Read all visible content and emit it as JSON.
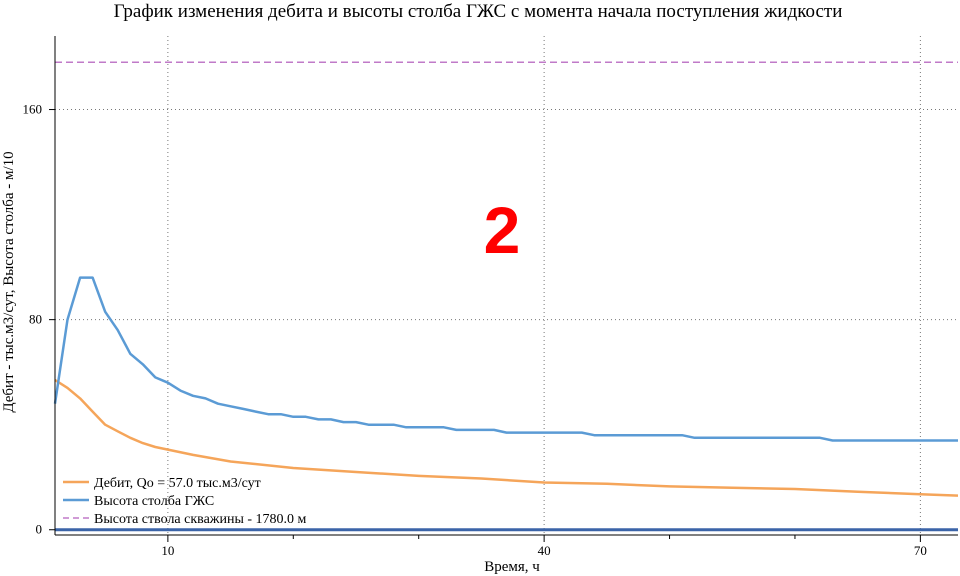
{
  "chart_data": {
    "type": "line",
    "title": "График изменения дебита и высоты столба ГЖС с момента начала поступления жидкости",
    "xlabel": "Время, ч",
    "ylabel": "Дебит - тыс.м3/сут, Высота столба - м/10",
    "xlim": [
      1,
      73
    ],
    "ylim": [
      -2,
      188
    ],
    "xticks_major": [
      10,
      40,
      70
    ],
    "xticks_minor": [
      20,
      30,
      50,
      60
    ],
    "yticks": [
      0,
      80,
      160
    ],
    "grid": true,
    "legend_position": "bottom-left",
    "annotation": "2",
    "series": [
      {
        "name": "Дебит, Qo =  57.0 тыс.м3/сут",
        "color": "#f5a55a",
        "style": "solid",
        "x": [
          1,
          2,
          3,
          4,
          5,
          6,
          7,
          8,
          9,
          10,
          12,
          15,
          20,
          25,
          30,
          35,
          40,
          45,
          50,
          55,
          60,
          65,
          70,
          73
        ],
        "y": [
          57.0,
          54,
          50,
          45,
          40,
          37.5,
          35,
          33,
          31.5,
          30.5,
          28.5,
          26,
          23.5,
          22,
          20.5,
          19.5,
          18,
          17.5,
          16.5,
          16,
          15.5,
          14.5,
          13.5,
          13
        ]
      },
      {
        "name": "Высота столба ГЖС",
        "color": "#5b9bd5",
        "style": "solid",
        "x": [
          1,
          2,
          3,
          4,
          5,
          6,
          7,
          8,
          9,
          10,
          11,
          12,
          13,
          14,
          15,
          16,
          17,
          18,
          19,
          20,
          21,
          22,
          23,
          24,
          25,
          26,
          27,
          28,
          29,
          30,
          31,
          32,
          33,
          34,
          35,
          36,
          37,
          38,
          39,
          40,
          41,
          42,
          43,
          44,
          45,
          46,
          47,
          48,
          49,
          50,
          51,
          52,
          53,
          54,
          55,
          56,
          57,
          58,
          59,
          60,
          61,
          62,
          63,
          64,
          65,
          66,
          67,
          68,
          69,
          70,
          71,
          72,
          73
        ],
        "y": [
          48,
          80,
          96,
          96,
          83,
          76,
          67,
          63,
          58,
          56,
          53,
          51,
          50,
          48,
          47,
          46,
          45,
          44,
          44,
          43,
          43,
          42,
          42,
          41,
          41,
          40,
          40,
          40,
          39,
          39,
          39,
          39,
          38,
          38,
          38,
          38,
          37,
          37,
          37,
          37,
          37,
          37,
          37,
          36,
          36,
          36,
          36,
          36,
          36,
          36,
          36,
          35,
          35,
          35,
          35,
          35,
          35,
          35,
          35,
          35,
          35,
          35,
          34,
          34,
          34,
          34,
          34,
          34,
          34,
          34,
          34,
          34,
          34
        ]
      },
      {
        "name": "Высота ствола скважины - 1780.0 м",
        "color": "#c07ac8",
        "style": "dashed",
        "x": [
          1,
          73
        ],
        "y": [
          178,
          178
        ]
      }
    ],
    "baseline": {
      "y": 0,
      "color": "#3b64a8"
    }
  }
}
